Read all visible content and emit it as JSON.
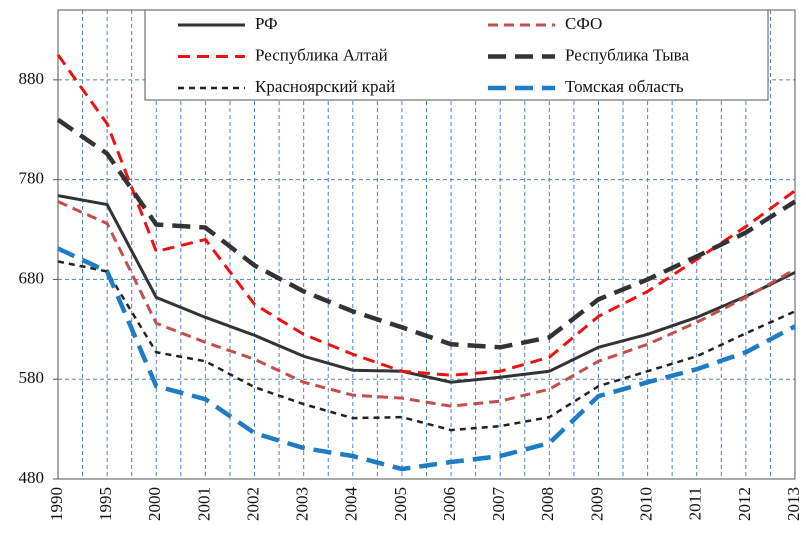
{
  "chart_data": {
    "type": "line",
    "categories": [
      "1990",
      "1995",
      "2000",
      "2001",
      "2002",
      "2003",
      "2004",
      "2005",
      "2006",
      "2007",
      "2008",
      "2009",
      "2010",
      "2011",
      "2012",
      "2013"
    ],
    "series": [
      {
        "name": "РФ",
        "color": "#333333",
        "values": [
          764,
          755,
          662,
          642,
          624,
          603,
          589,
          588,
          577,
          582,
          588,
          612,
          625,
          642,
          663,
          687
        ]
      },
      {
        "name": "СФО",
        "color": "#c0504d",
        "values": [
          758,
          736,
          636,
          617,
          600,
          577,
          564,
          561,
          553,
          558,
          570,
          598,
          615,
          637,
          662,
          690
        ]
      },
      {
        "name": "Республика Алтай",
        "color": "#ee1111",
        "values": [
          905,
          836,
          708,
          720,
          655,
          625,
          605,
          588,
          584,
          588,
          602,
          643,
          668,
          700,
          733,
          769
        ]
      },
      {
        "name": "Республика Тыва",
        "color": "#333333",
        "values": [
          840,
          806,
          735,
          732,
          694,
          668,
          648,
          632,
          615,
          612,
          622,
          660,
          680,
          703,
          727,
          758
        ]
      },
      {
        "name": "Красноярский край",
        "color": "#222222",
        "values": [
          698,
          688,
          607,
          598,
          572,
          555,
          541,
          542,
          529,
          533,
          542,
          573,
          588,
          603,
          626,
          648
        ]
      },
      {
        "name": "Томская область",
        "color": "#1f7bc4",
        "values": [
          711,
          688,
          573,
          560,
          526,
          511,
          503,
          490,
          497,
          503,
          516,
          563,
          577,
          590,
          607,
          633
        ]
      }
    ],
    "ylim": [
      480,
      950
    ],
    "yticks": [
      480,
      580,
      680,
      780,
      880
    ],
    "grid": true,
    "legend": "top"
  }
}
